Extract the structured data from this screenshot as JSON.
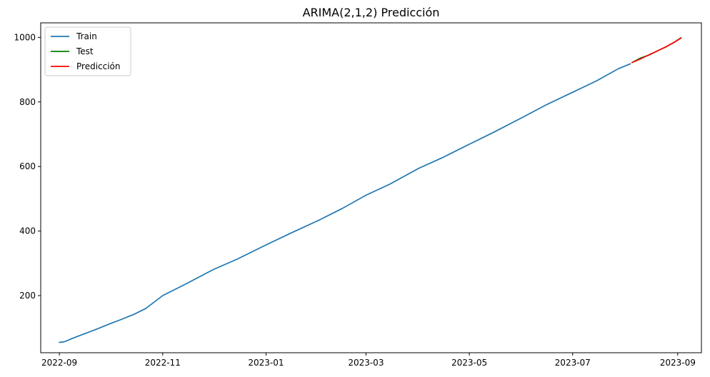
{
  "chart_data": {
    "type": "line",
    "title": "ARIMA(2,1,2) Predicción",
    "xlabel": "",
    "ylabel": "",
    "x_axis": "date",
    "x_range": [
      "2022-08-21",
      "2023-09-15"
    ],
    "y_range": [
      23,
      1045
    ],
    "grid": false,
    "legend_position": "top-left",
    "x_ticks": [
      {
        "date": "2022-09-01",
        "label": "2022-09"
      },
      {
        "date": "2022-11-01",
        "label": "2022-11"
      },
      {
        "date": "2023-01-01",
        "label": "2023-01"
      },
      {
        "date": "2023-03-01",
        "label": "2023-03"
      },
      {
        "date": "2023-05-01",
        "label": "2023-05"
      },
      {
        "date": "2023-07-01",
        "label": "2023-07"
      },
      {
        "date": "2023-09-01",
        "label": "2023-09"
      }
    ],
    "y_ticks": [
      {
        "value": 200,
        "label": "200"
      },
      {
        "value": 400,
        "label": "400"
      },
      {
        "value": 600,
        "label": "600"
      },
      {
        "value": 800,
        "label": "800"
      },
      {
        "value": 1000,
        "label": "1000"
      }
    ],
    "series": [
      {
        "name": "Train",
        "color": "#1f77b4",
        "points": [
          [
            "2022-09-01",
            55
          ],
          [
            "2022-09-04",
            57
          ],
          [
            "2022-09-08",
            66
          ],
          [
            "2022-09-15",
            80
          ],
          [
            "2022-09-22",
            94
          ],
          [
            "2022-10-01",
            113
          ],
          [
            "2022-10-08",
            127
          ],
          [
            "2022-10-15",
            142
          ],
          [
            "2022-10-22",
            160
          ],
          [
            "2022-11-01",
            200
          ],
          [
            "2022-11-15",
            237
          ],
          [
            "2022-12-01",
            281
          ],
          [
            "2022-12-15",
            313
          ],
          [
            "2023-01-01",
            357
          ],
          [
            "2023-01-15",
            392
          ],
          [
            "2023-02-01",
            433
          ],
          [
            "2023-02-15",
            470
          ],
          [
            "2023-03-01",
            511
          ],
          [
            "2023-03-15",
            545
          ],
          [
            "2023-04-01",
            594
          ],
          [
            "2023-04-15",
            627
          ],
          [
            "2023-05-01",
            669
          ],
          [
            "2023-05-15",
            705
          ],
          [
            "2023-06-01",
            751
          ],
          [
            "2023-06-15",
            790
          ],
          [
            "2023-07-01",
            830
          ],
          [
            "2023-07-15",
            865
          ],
          [
            "2023-07-28",
            903
          ],
          [
            "2023-08-04",
            918
          ]
        ]
      },
      {
        "name": "Test",
        "color": "#008000",
        "points": [
          [
            "2023-08-05",
            922
          ],
          [
            "2023-08-10",
            936
          ],
          [
            "2023-08-15",
            945
          ],
          [
            "2023-08-20",
            958
          ],
          [
            "2023-08-25",
            970
          ],
          [
            "2023-08-30",
            985
          ],
          [
            "2023-09-03",
            999
          ]
        ]
      },
      {
        "name": "Predicción",
        "color": "#ff0000",
        "points": [
          [
            "2023-08-05",
            922
          ],
          [
            "2023-08-10",
            933
          ],
          [
            "2023-08-15",
            946
          ],
          [
            "2023-08-20",
            958
          ],
          [
            "2023-08-25",
            971
          ],
          [
            "2023-08-30",
            985
          ],
          [
            "2023-09-03",
            998
          ]
        ]
      }
    ]
  }
}
